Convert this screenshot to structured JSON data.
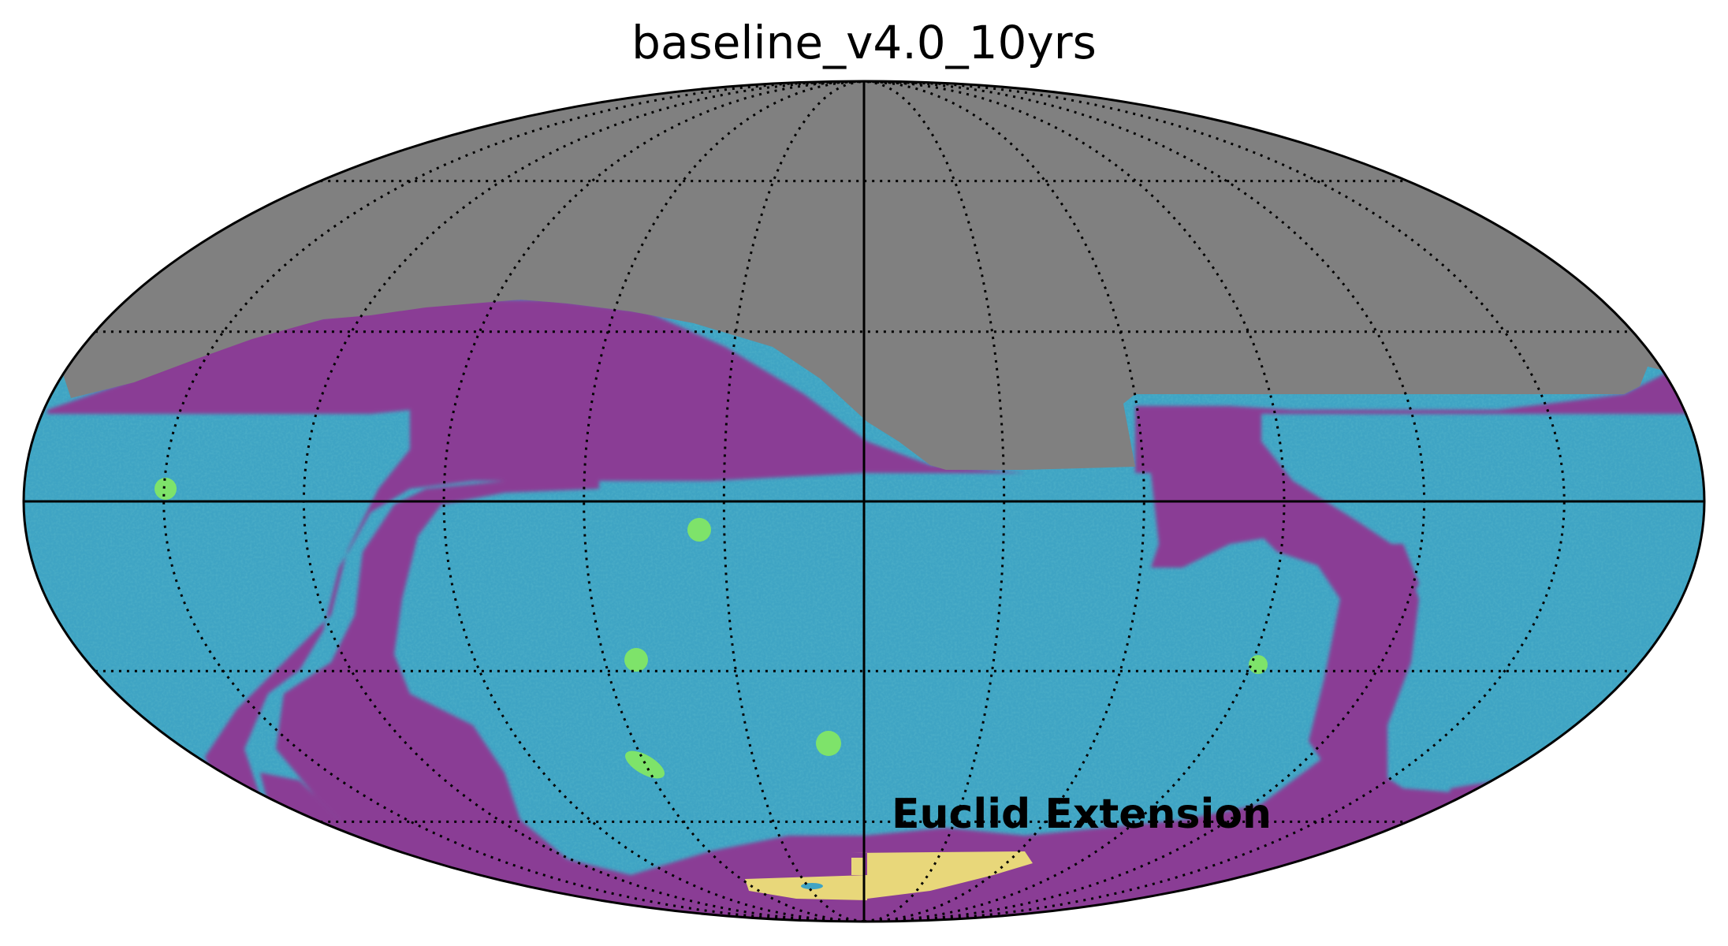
{
  "figure": {
    "title": "baseline_v4.0_10yrs",
    "annotation": "Euclid Extension",
    "projection": "mollweide",
    "graticule": "dotted",
    "colors": {
      "background": "#ffffff",
      "masked": "#808080",
      "low_coverage": "#8a3e95",
      "wide_fast_deep": "#3fa4c4",
      "deep_drilling": "#7ee36a",
      "euclid_extension": "#e8d77a",
      "outline": "#000000"
    },
    "legend": "none",
    "colorbar": "none"
  }
}
